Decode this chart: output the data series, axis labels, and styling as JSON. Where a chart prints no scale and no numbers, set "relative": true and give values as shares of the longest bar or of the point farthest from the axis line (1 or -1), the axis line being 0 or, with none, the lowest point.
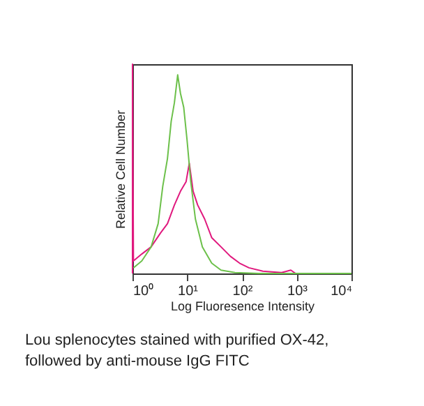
{
  "chart_data": {
    "type": "line",
    "relative": true,
    "log": "x",
    "xlabel": "Log Fluoresence Intensity",
    "ylabel": "Relative Cell Number",
    "xlim": [
      1,
      10000
    ],
    "xticks": [
      {
        "value": 1,
        "label": "10⁰"
      },
      {
        "value": 10,
        "label": "10¹"
      },
      {
        "value": 100,
        "label": "10²"
      },
      {
        "value": 1000,
        "label": "10³"
      },
      {
        "value": 10000,
        "label": "10⁴"
      }
    ],
    "grid": false,
    "marker": "none",
    "line_style": "solid",
    "series": [
      {
        "color": "#e0197e",
        "x": [
          1,
          1,
          1.04,
          1.48,
          2.19,
          3.24,
          4.35,
          5.83,
          7.53,
          9.52,
          10.9,
          12.8,
          15.5,
          20.8,
          28,
          41.4,
          61.3,
          90.6,
          134,
          241,
          529,
          780,
          953,
          10000
        ],
        "values": [
          0,
          1,
          0.06,
          0.093,
          0.127,
          0.193,
          0.238,
          0.327,
          0.393,
          0.438,
          0.527,
          0.393,
          0.327,
          0.26,
          0.171,
          0.127,
          0.082,
          0.049,
          0.027,
          0.011,
          0.004,
          0.016,
          0,
          0
        ]
      },
      {
        "color": "#6cc04a",
        "x": [
          1.04,
          1.48,
          2.19,
          2.94,
          3.57,
          4.35,
          5.09,
          5.83,
          6.69,
          7.53,
          8.63,
          9.9,
          11.6,
          14.1,
          18.9,
          28,
          41.4,
          74.5,
          199,
          10000
        ],
        "values": [
          0.027,
          0.06,
          0.127,
          0.238,
          0.416,
          0.549,
          0.727,
          0.816,
          0.949,
          0.86,
          0.793,
          0.64,
          0.438,
          0.26,
          0.127,
          0.049,
          0.016,
          0.004,
          0,
          0
        ]
      }
    ],
    "annotations": [
      "Lou splenocytes stained with purified OX-42, followed by anti-mouse IgG FITC"
    ]
  }
}
